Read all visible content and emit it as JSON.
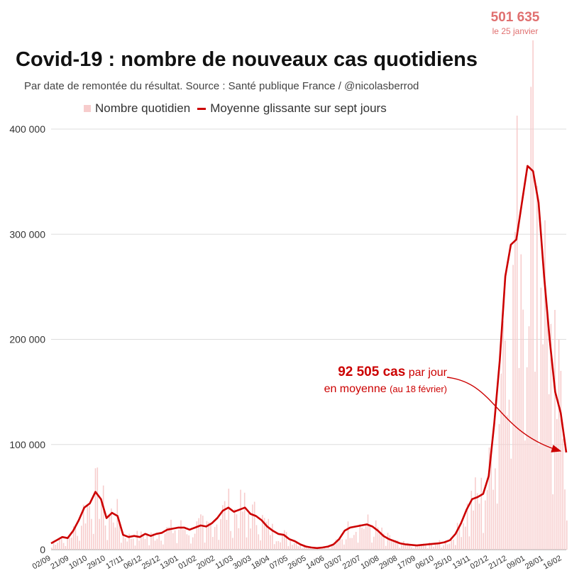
{
  "chart_data": {
    "type": "bar+line",
    "title": "Covid-19 : nombre de nouveaux cas quotidiens",
    "subtitle": "Par date de remontée du résultat. Source : Santé publique France / @nicolasberrod",
    "legend": [
      "Nombre quotidien",
      "Moyenne glissante sur sept jours"
    ],
    "colors": {
      "bars": "#f7cccc",
      "line": "#cc0000",
      "peak": "#e07070"
    },
    "ylim": [
      0,
      400000
    ],
    "yticks": [
      0,
      100000,
      200000,
      300000,
      400000
    ],
    "ytick_labels": [
      "0",
      "100 000",
      "200 000",
      "300 000",
      "400 000"
    ],
    "x_ticks": [
      "02/09",
      "21/09",
      "10/10",
      "29/10",
      "17/11",
      "06/12",
      "25/12",
      "13/01",
      "01/02",
      "20/02",
      "11/03",
      "30/03",
      "18/04",
      "07/05",
      "26/05",
      "14/06",
      "03/07",
      "22/07",
      "10/08",
      "29/08",
      "17/09",
      "06/10",
      "25/10",
      "13/11",
      "02/12",
      "21/12",
      "09/01",
      "28/01",
      "16/02"
    ],
    "series": [
      {
        "name": "Moyenne glissante sur sept jours",
        "values": [
          6000,
          9000,
          12000,
          11000,
          18000,
          28000,
          40000,
          44000,
          55000,
          48000,
          30000,
          35000,
          32000,
          14000,
          12000,
          13000,
          12000,
          15000,
          13000,
          15000,
          16000,
          19000,
          20000,
          21000,
          21000,
          19000,
          21000,
          23000,
          22000,
          25000,
          30000,
          37000,
          40000,
          36000,
          38000,
          40000,
          34000,
          32000,
          28000,
          22000,
          18000,
          15000,
          14000,
          10000,
          8000,
          5000,
          3000,
          2000,
          1500,
          2000,
          3000,
          5000,
          10000,
          18000,
          21000,
          22000,
          23000,
          24000,
          22000,
          18000,
          13000,
          10000,
          8000,
          6000,
          5000,
          4500,
          4000,
          4500,
          5000,
          5500,
          6000,
          7000,
          9000,
          15000,
          25000,
          38000,
          48000,
          50000,
          53000,
          70000,
          120000,
          180000,
          260000,
          290000,
          295000,
          330000,
          365000,
          360000,
          330000,
          260000,
          200000,
          150000,
          130000,
          92505
        ]
      }
    ],
    "peak_value": "501 635",
    "peak_date": "le 25 janvier",
    "annotation": {
      "value": "92 505 cas",
      "text1": "par jour",
      "text2": "en moyenne",
      "text3": "(au 18 février)"
    }
  }
}
